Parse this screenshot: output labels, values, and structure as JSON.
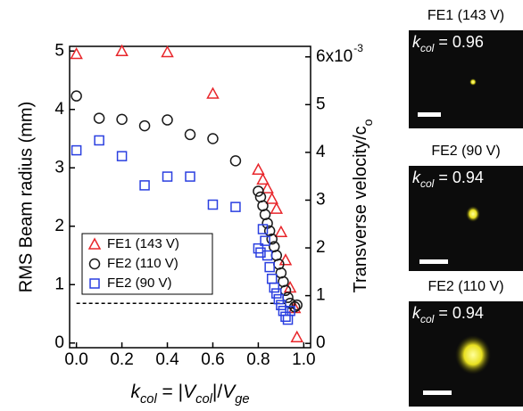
{
  "chart_data": {
    "type": "scatter",
    "xlabel_parts": [
      {
        "text": "k",
        "italic": true
      },
      {
        "text": "col",
        "italic": true,
        "sub": true
      },
      {
        "text": " = |"
      },
      {
        "text": "V",
        "italic": true
      },
      {
        "text": "col",
        "italic": true,
        "sub": true
      },
      {
        "text": "|/"
      },
      {
        "text": "V",
        "italic": true
      },
      {
        "text": "ge",
        "italic": true,
        "sub": true
      }
    ],
    "ylabel": "RMS Beam radius (mm)",
    "y2label_parts": [
      {
        "text": "Transverse velocity/c"
      },
      {
        "text": "o",
        "sub": true
      }
    ],
    "xlim": [
      -0.03,
      1.03
    ],
    "xticks": [
      {
        "value": 0,
        "label": "0.0"
      },
      0.2,
      0.4,
      0.6,
      0.8,
      {
        "value": 1,
        "label": "1.0"
      }
    ],
    "ylim": [
      -0.08,
      5.08
    ],
    "yticks": [
      0,
      1,
      2,
      3,
      4,
      5
    ],
    "y2lim": [
      -0.09,
      6.22
    ],
    "y2ticks": [
      0,
      1,
      2,
      3,
      4,
      5,
      {
        "value": 6,
        "label": "6x10"
      }
    ],
    "y2_exponent": "-3",
    "reference_line": {
      "y": 0.68,
      "x": [
        0,
        0.92
      ]
    },
    "legend": "lower-left",
    "series": [
      {
        "name": "FE1 (143 V)",
        "color": "#e8262b",
        "marker": "triangle",
        "x": [
          0,
          0.2,
          0.4,
          0.6,
          0.8,
          0.82,
          0.84,
          0.86,
          0.88,
          0.9,
          0.92,
          0.94,
          0.96,
          0.97
        ],
        "values": [
          4.95,
          5,
          4.98,
          4.27,
          2.97,
          2.8,
          2.65,
          2.47,
          2.3,
          1.9,
          1.42,
          0.95,
          0.6,
          0.1
        ]
      },
      {
        "name": "FE2 (110 V)",
        "color": "#1a1a1a",
        "marker": "circle",
        "x": [
          0,
          0.1,
          0.2,
          0.3,
          0.4,
          0.5,
          0.6,
          0.7,
          0.8,
          0.81,
          0.82,
          0.83,
          0.84,
          0.85,
          0.86,
          0.87,
          0.88,
          0.89,
          0.9,
          0.91,
          0.92,
          0.93,
          0.94,
          0.96,
          0.97
        ],
        "values": [
          4.23,
          3.85,
          3.83,
          3.72,
          3.82,
          3.57,
          3.5,
          3.12,
          2.6,
          2.5,
          2.35,
          2.2,
          2.05,
          1.92,
          1.78,
          1.65,
          1.5,
          1.35,
          1.2,
          1.05,
          0.9,
          0.78,
          0.68,
          0.62,
          0.65
        ]
      },
      {
        "name": "FE2 (90 V)",
        "color": "#2a3fe0",
        "marker": "square",
        "x": [
          0,
          0.1,
          0.2,
          0.3,
          0.4,
          0.5,
          0.6,
          0.7,
          0.8,
          0.81,
          0.82,
          0.83,
          0.84,
          0.85,
          0.86,
          0.87,
          0.88,
          0.89,
          0.9,
          0.91,
          0.92,
          0.93,
          0.94
        ],
        "values": [
          3.3,
          3.47,
          3.2,
          2.7,
          2.85,
          2.85,
          2.37,
          2.33,
          1.62,
          1.55,
          1.95,
          1.75,
          1.5,
          1.3,
          1.1,
          0.95,
          0.85,
          0.75,
          0.65,
          0.55,
          0.45,
          0.4,
          0.55
        ]
      }
    ]
  },
  "images": [
    {
      "title": "FE1 (143 V)",
      "k": "k",
      "k_sub": "col",
      "k_value": " = 0.96"
    },
    {
      "title": "FE2 (90 V)",
      "k": "k",
      "k_sub": "col",
      "k_value": " = 0.94"
    },
    {
      "title": "FE2 (110 V)",
      "k": "k",
      "k_sub": "col",
      "k_value": " = 0.94"
    }
  ]
}
